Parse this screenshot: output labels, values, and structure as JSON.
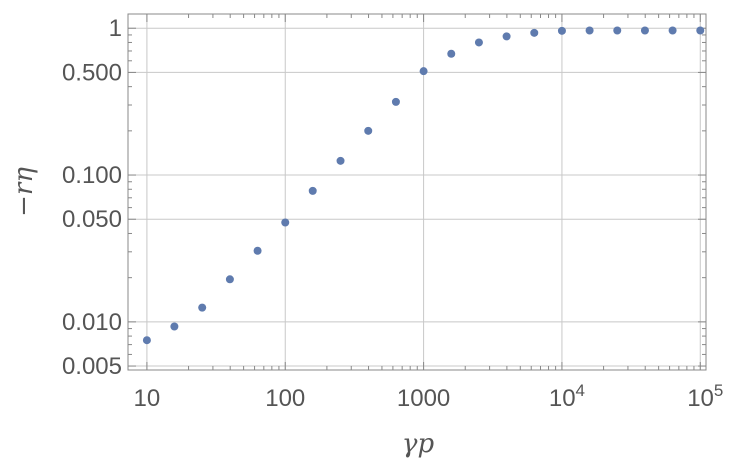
{
  "chart_data": {
    "type": "scatter",
    "title": "",
    "xlabel": "γp",
    "ylabel": "−rη",
    "x_scale": "log",
    "y_scale": "log",
    "xlim": [
      7.3,
      110000
    ],
    "ylim": [
      0.0047,
      1.25
    ],
    "grid": true,
    "color": "#5f7bae",
    "x_ticks": [
      {
        "value": 10,
        "label": "10"
      },
      {
        "value": 100,
        "label": "100"
      },
      {
        "value": 1000,
        "label": "1000"
      },
      {
        "value": 10000,
        "label": "10",
        "exp": "4"
      },
      {
        "value": 100000,
        "label": "10",
        "exp": "5"
      }
    ],
    "y_ticks": [
      {
        "value": 1,
        "label": "1"
      },
      {
        "value": 0.5,
        "label": "0.500"
      },
      {
        "value": 0.1,
        "label": "0.100"
      },
      {
        "value": 0.05,
        "label": "0.050"
      },
      {
        "value": 0.01,
        "label": "0.010"
      },
      {
        "value": 0.005,
        "label": "0.005"
      }
    ],
    "x_grid": [
      10,
      100,
      1000,
      10000,
      100000
    ],
    "y_grid": [
      1,
      0.5,
      0.1,
      0.05,
      0.01,
      0.005
    ],
    "points": [
      {
        "x": 10,
        "y": 0.0075
      },
      {
        "x": 15.8,
        "y": 0.0093
      },
      {
        "x": 25.1,
        "y": 0.0125
      },
      {
        "x": 39.8,
        "y": 0.0195
      },
      {
        "x": 63.1,
        "y": 0.0305
      },
      {
        "x": 100,
        "y": 0.0475
      },
      {
        "x": 158,
        "y": 0.078
      },
      {
        "x": 251,
        "y": 0.125
      },
      {
        "x": 398,
        "y": 0.2
      },
      {
        "x": 631,
        "y": 0.315
      },
      {
        "x": 1000,
        "y": 0.51
      },
      {
        "x": 1585,
        "y": 0.67
      },
      {
        "x": 2512,
        "y": 0.8
      },
      {
        "x": 3981,
        "y": 0.88
      },
      {
        "x": 6310,
        "y": 0.93
      },
      {
        "x": 10000,
        "y": 0.96
      },
      {
        "x": 15849,
        "y": 0.965
      },
      {
        "x": 25119,
        "y": 0.965
      },
      {
        "x": 39811,
        "y": 0.965
      },
      {
        "x": 63096,
        "y": 0.965
      },
      {
        "x": 100000,
        "y": 0.965
      }
    ]
  }
}
